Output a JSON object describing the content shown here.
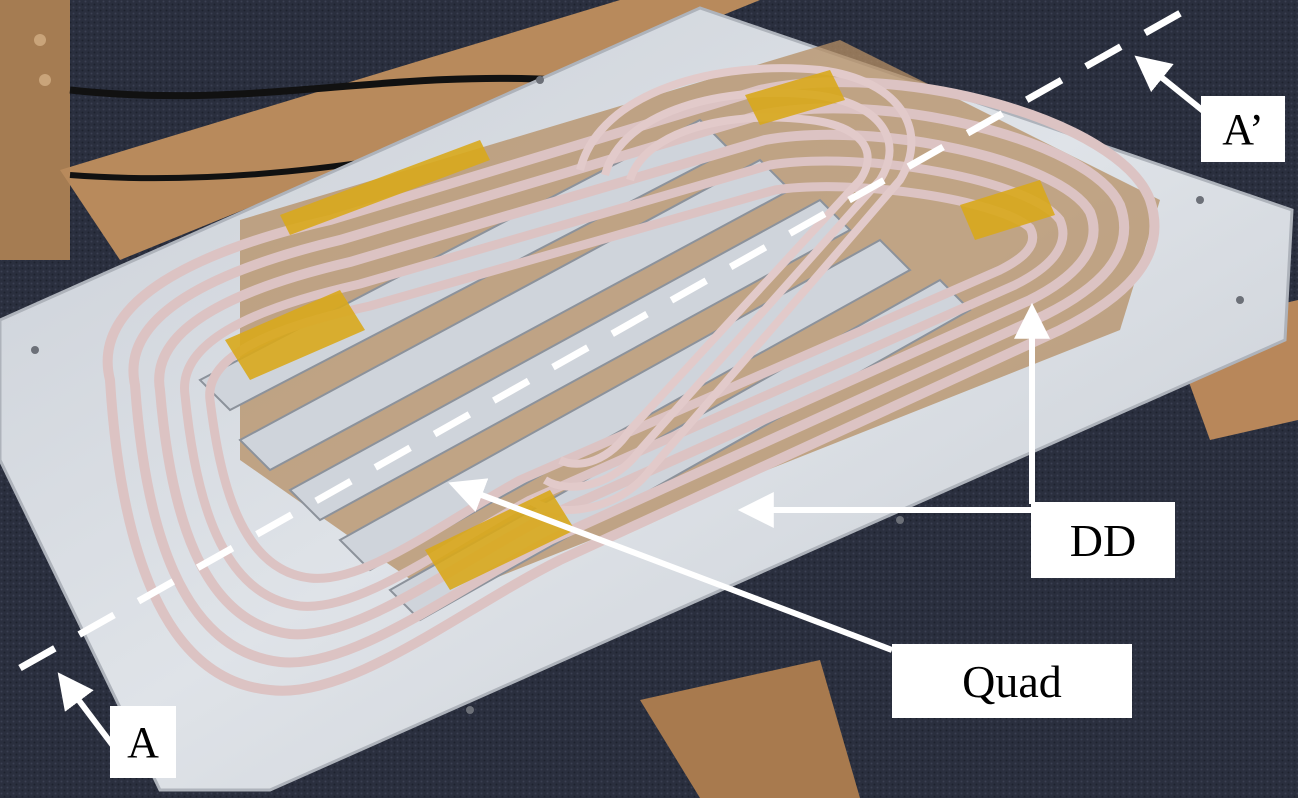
{
  "labels": {
    "a": "A",
    "a_prime": "A’",
    "dd": "DD",
    "quad": "Quad"
  },
  "colors": {
    "label_background": "#ffffff",
    "label_text": "#000000",
    "arrow": "#ffffff",
    "section_line": "#ffffff",
    "coil_wire": "#d9c0c0",
    "tape": "#d8a81c",
    "base_plate": "#d9dde2",
    "wood": "#b8875a",
    "carpet": "#2b3040"
  }
}
